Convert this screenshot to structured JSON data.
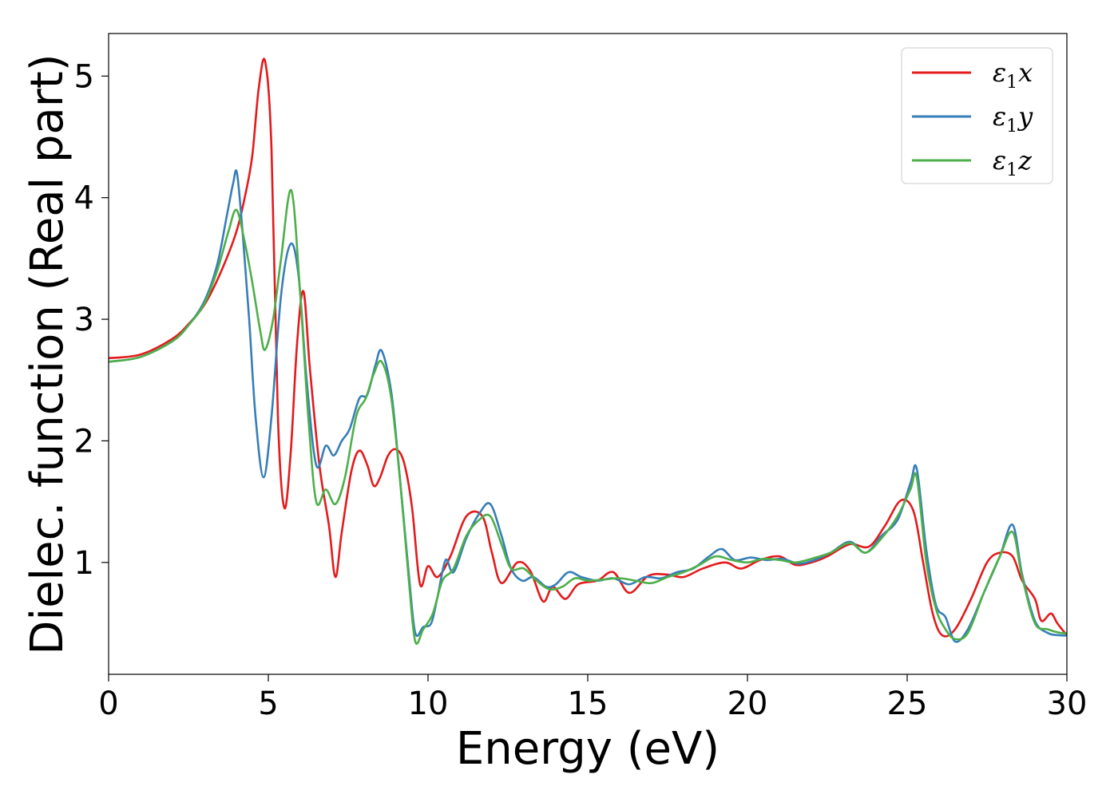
{
  "chart_data": {
    "type": "line",
    "xlabel": "Energy (eV)",
    "ylabel": "Dielec. function (Real part)",
    "xlim": [
      0,
      30
    ],
    "ylim": [
      0.08,
      5.35
    ],
    "x_ticks": [
      0,
      5,
      10,
      15,
      20,
      25,
      30
    ],
    "y_ticks": [
      1,
      2,
      3,
      4,
      5
    ],
    "grid": false,
    "legend_position": "top-right",
    "series": [
      {
        "name": "ε₁x",
        "legend": {
          "base": "ε",
          "sub": "1",
          "suffix": "x"
        },
        "color": "#e41a1c",
        "points": [
          [
            0,
            2.68
          ],
          [
            1,
            2.71
          ],
          [
            2,
            2.84
          ],
          [
            2.5,
            2.96
          ],
          [
            3,
            3.12
          ],
          [
            3.5,
            3.38
          ],
          [
            4,
            3.72
          ],
          [
            4.3,
            4.05
          ],
          [
            4.5,
            4.35
          ],
          [
            4.7,
            4.9
          ],
          [
            4.9,
            5.12
          ],
          [
            5.1,
            4.4
          ],
          [
            5.3,
            2.2
          ],
          [
            5.5,
            1.45
          ],
          [
            5.7,
            1.9
          ],
          [
            5.9,
            2.8
          ],
          [
            6.1,
            3.23
          ],
          [
            6.3,
            2.6
          ],
          [
            6.6,
            1.8
          ],
          [
            6.9,
            1.3
          ],
          [
            7.1,
            0.88
          ],
          [
            7.3,
            1.25
          ],
          [
            7.6,
            1.75
          ],
          [
            7.85,
            1.92
          ],
          [
            8.1,
            1.8
          ],
          [
            8.3,
            1.63
          ],
          [
            8.5,
            1.7
          ],
          [
            8.75,
            1.88
          ],
          [
            9.0,
            1.93
          ],
          [
            9.25,
            1.82
          ],
          [
            9.5,
            1.45
          ],
          [
            9.75,
            0.82
          ],
          [
            10.0,
            0.97
          ],
          [
            10.3,
            0.88
          ],
          [
            10.7,
            1.05
          ],
          [
            11.2,
            1.38
          ],
          [
            11.7,
            1.38
          ],
          [
            12.0,
            1.08
          ],
          [
            12.3,
            0.83
          ],
          [
            12.8,
            1.0
          ],
          [
            13.2,
            0.93
          ],
          [
            13.6,
            0.68
          ],
          [
            13.9,
            0.8
          ],
          [
            14.3,
            0.7
          ],
          [
            14.7,
            0.82
          ],
          [
            15.3,
            0.85
          ],
          [
            15.8,
            0.92
          ],
          [
            16.3,
            0.75
          ],
          [
            16.9,
            0.89
          ],
          [
            17.5,
            0.9
          ],
          [
            18.0,
            0.88
          ],
          [
            18.6,
            0.95
          ],
          [
            19.3,
            1.0
          ],
          [
            19.8,
            0.95
          ],
          [
            20.4,
            1.02
          ],
          [
            21.0,
            1.05
          ],
          [
            21.5,
            0.98
          ],
          [
            22.0,
            1.0
          ],
          [
            22.5,
            1.05
          ],
          [
            23.2,
            1.15
          ],
          [
            23.8,
            1.13
          ],
          [
            24.3,
            1.3
          ],
          [
            24.8,
            1.51
          ],
          [
            25.2,
            1.42
          ],
          [
            25.5,
            1.0
          ],
          [
            25.8,
            0.58
          ],
          [
            26.1,
            0.4
          ],
          [
            26.5,
            0.45
          ],
          [
            27.0,
            0.7
          ],
          [
            27.5,
            1.0
          ],
          [
            27.9,
            1.08
          ],
          [
            28.3,
            1.05
          ],
          [
            28.6,
            0.85
          ],
          [
            29.0,
            0.7
          ],
          [
            29.2,
            0.52
          ],
          [
            29.5,
            0.58
          ],
          [
            29.7,
            0.5
          ],
          [
            30.0,
            0.4
          ]
        ]
      },
      {
        "name": "ε₁y",
        "legend": {
          "base": "ε",
          "sub": "1",
          "suffix": "y"
        },
        "color": "#377eb8",
        "points": [
          [
            0,
            2.65
          ],
          [
            1,
            2.69
          ],
          [
            2,
            2.82
          ],
          [
            2.5,
            2.95
          ],
          [
            3,
            3.15
          ],
          [
            3.4,
            3.45
          ],
          [
            3.7,
            3.85
          ],
          [
            3.9,
            4.12
          ],
          [
            4.02,
            4.2
          ],
          [
            4.2,
            3.7
          ],
          [
            4.4,
            3.0
          ],
          [
            4.6,
            2.2
          ],
          [
            4.85,
            1.7
          ],
          [
            5.1,
            2.2
          ],
          [
            5.4,
            3.2
          ],
          [
            5.7,
            3.62
          ],
          [
            5.95,
            3.35
          ],
          [
            6.2,
            2.5
          ],
          [
            6.5,
            1.8
          ],
          [
            6.8,
            1.96
          ],
          [
            7.05,
            1.88
          ],
          [
            7.3,
            2.0
          ],
          [
            7.55,
            2.1
          ],
          [
            7.85,
            2.35
          ],
          [
            8.1,
            2.38
          ],
          [
            8.35,
            2.62
          ],
          [
            8.55,
            2.74
          ],
          [
            8.85,
            2.4
          ],
          [
            9.1,
            1.75
          ],
          [
            9.4,
            0.9
          ],
          [
            9.6,
            0.42
          ],
          [
            9.85,
            0.47
          ],
          [
            10.1,
            0.5
          ],
          [
            10.3,
            0.72
          ],
          [
            10.55,
            1.02
          ],
          [
            10.8,
            0.92
          ],
          [
            11.2,
            1.2
          ],
          [
            11.6,
            1.4
          ],
          [
            11.95,
            1.48
          ],
          [
            12.3,
            1.22
          ],
          [
            12.6,
            0.95
          ],
          [
            12.95,
            0.85
          ],
          [
            13.3,
            0.88
          ],
          [
            13.7,
            0.8
          ],
          [
            14.0,
            0.82
          ],
          [
            14.4,
            0.92
          ],
          [
            14.8,
            0.88
          ],
          [
            15.3,
            0.85
          ],
          [
            15.8,
            0.87
          ],
          [
            16.3,
            0.82
          ],
          [
            16.8,
            0.88
          ],
          [
            17.3,
            0.87
          ],
          [
            17.8,
            0.92
          ],
          [
            18.3,
            0.95
          ],
          [
            18.8,
            1.05
          ],
          [
            19.2,
            1.11
          ],
          [
            19.6,
            1.02
          ],
          [
            20.1,
            1.04
          ],
          [
            20.6,
            1.02
          ],
          [
            21.1,
            1.03
          ],
          [
            21.6,
            0.99
          ],
          [
            22.1,
            1.02
          ],
          [
            22.6,
            1.08
          ],
          [
            23.2,
            1.17
          ],
          [
            23.7,
            1.08
          ],
          [
            24.2,
            1.22
          ],
          [
            24.7,
            1.35
          ],
          [
            25.1,
            1.65
          ],
          [
            25.3,
            1.77
          ],
          [
            25.6,
            1.1
          ],
          [
            25.9,
            0.65
          ],
          [
            26.2,
            0.55
          ],
          [
            26.5,
            0.35
          ],
          [
            26.9,
            0.45
          ],
          [
            27.4,
            0.75
          ],
          [
            27.9,
            1.05
          ],
          [
            28.3,
            1.31
          ],
          [
            28.6,
            0.9
          ],
          [
            29.0,
            0.52
          ],
          [
            29.4,
            0.42
          ],
          [
            29.8,
            0.4
          ],
          [
            30.0,
            0.4
          ]
        ]
      },
      {
        "name": "ε₁z",
        "legend": {
          "base": "ε",
          "sub": "1",
          "suffix": "z"
        },
        "color": "#4daf4a",
        "points": [
          [
            0,
            2.65
          ],
          [
            1,
            2.69
          ],
          [
            2,
            2.82
          ],
          [
            2.5,
            2.95
          ],
          [
            3,
            3.13
          ],
          [
            3.4,
            3.4
          ],
          [
            3.75,
            3.72
          ],
          [
            4.0,
            3.9
          ],
          [
            4.25,
            3.65
          ],
          [
            4.5,
            3.3
          ],
          [
            4.75,
            2.9
          ],
          [
            4.9,
            2.75
          ],
          [
            5.15,
            3.0
          ],
          [
            5.4,
            3.5
          ],
          [
            5.72,
            4.06
          ],
          [
            6.0,
            3.2
          ],
          [
            6.25,
            2.2
          ],
          [
            6.5,
            1.5
          ],
          [
            6.8,
            1.6
          ],
          [
            7.1,
            1.48
          ],
          [
            7.4,
            1.7
          ],
          [
            7.75,
            2.2
          ],
          [
            8.05,
            2.35
          ],
          [
            8.3,
            2.55
          ],
          [
            8.55,
            2.65
          ],
          [
            8.85,
            2.35
          ],
          [
            9.15,
            1.6
          ],
          [
            9.4,
            0.85
          ],
          [
            9.6,
            0.35
          ],
          [
            9.85,
            0.45
          ],
          [
            10.15,
            0.58
          ],
          [
            10.45,
            0.85
          ],
          [
            10.8,
            0.95
          ],
          [
            11.2,
            1.22
          ],
          [
            11.6,
            1.35
          ],
          [
            11.95,
            1.38
          ],
          [
            12.3,
            1.15
          ],
          [
            12.6,
            0.95
          ],
          [
            13.0,
            0.95
          ],
          [
            13.4,
            0.85
          ],
          [
            13.8,
            0.78
          ],
          [
            14.2,
            0.8
          ],
          [
            14.6,
            0.87
          ],
          [
            15.0,
            0.85
          ],
          [
            15.5,
            0.86
          ],
          [
            16.0,
            0.87
          ],
          [
            16.5,
            0.85
          ],
          [
            17.0,
            0.83
          ],
          [
            17.5,
            0.88
          ],
          [
            18.0,
            0.92
          ],
          [
            18.5,
            0.98
          ],
          [
            19.0,
            1.05
          ],
          [
            19.5,
            1.02
          ],
          [
            20.0,
            1.0
          ],
          [
            20.5,
            1.03
          ],
          [
            21.0,
            1.02
          ],
          [
            21.5,
            1.0
          ],
          [
            22.0,
            1.03
          ],
          [
            22.6,
            1.08
          ],
          [
            23.2,
            1.16
          ],
          [
            23.7,
            1.08
          ],
          [
            24.2,
            1.2
          ],
          [
            24.7,
            1.38
          ],
          [
            25.1,
            1.6
          ],
          [
            25.3,
            1.7
          ],
          [
            25.6,
            1.0
          ],
          [
            25.9,
            0.62
          ],
          [
            26.2,
            0.45
          ],
          [
            26.5,
            0.37
          ],
          [
            26.9,
            0.42
          ],
          [
            27.4,
            0.75
          ],
          [
            27.9,
            1.05
          ],
          [
            28.3,
            1.25
          ],
          [
            28.6,
            0.88
          ],
          [
            29.0,
            0.5
          ],
          [
            29.4,
            0.45
          ],
          [
            29.8,
            0.42
          ],
          [
            30.0,
            0.42
          ]
        ]
      }
    ]
  }
}
